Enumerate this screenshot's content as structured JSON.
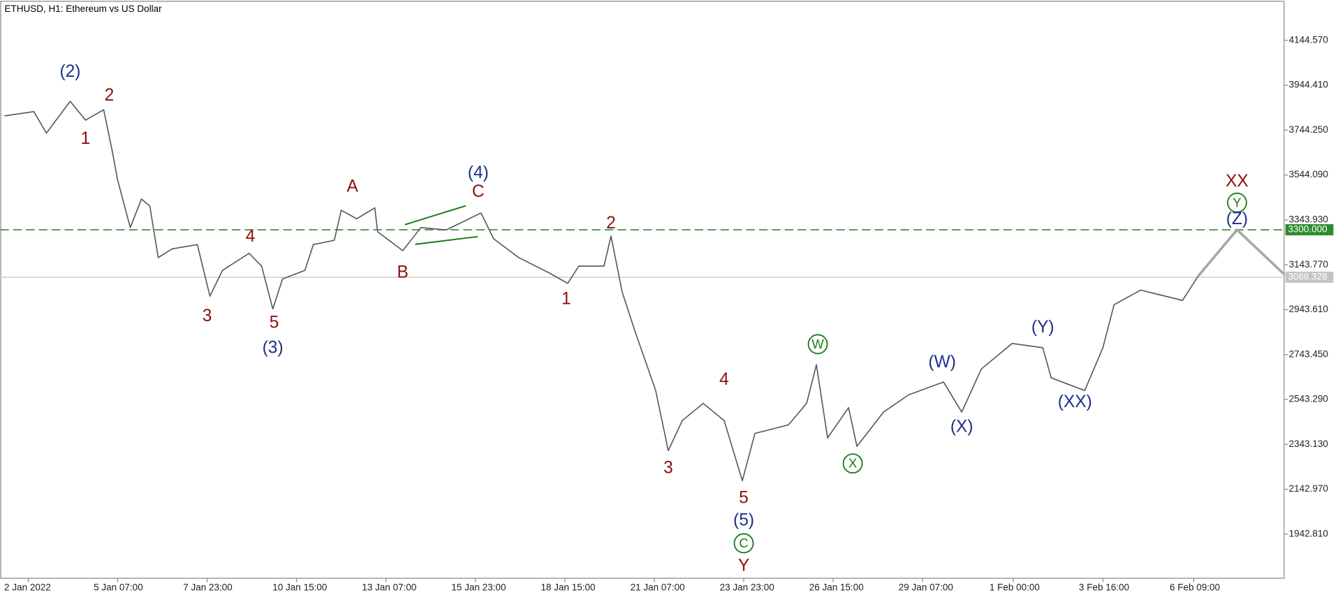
{
  "chart_data": {
    "type": "line",
    "title": "ETHUSD, H1:  Ethereum vs US Dollar",
    "color": "#555555",
    "x": [
      -2,
      19,
      28,
      45,
      56,
      69,
      75,
      79,
      88,
      96,
      102,
      108,
      118,
      136,
      145,
      154,
      173,
      182,
      190,
      197,
      213,
      219,
      234,
      239,
      250,
      263,
      265,
      283,
      296,
      314,
      339,
      348,
      366,
      388,
      401,
      409,
      427,
      432,
      440,
      449,
      464,
      473,
      483,
      498,
      513,
      526,
      535,
      559,
      572,
      579,
      587,
      602,
      608,
      627,
      645,
      670,
      683,
      697,
      719,
      741,
      747,
      771,
      784,
      792,
      811,
      841,
      852
    ],
    "values": [
      3808,
      3827,
      3731,
      3873,
      3789,
      3835,
      3655,
      3521,
      3310,
      3437,
      3406,
      3176,
      3215,
      3234,
      3004,
      3119,
      3195,
      3138,
      2947,
      3081,
      3119,
      3234,
      3253,
      3387,
      3349,
      3398,
      3291,
      3207,
      3310,
      3299,
      3375,
      3260,
      3176,
      3107,
      3061,
      3138,
      3138,
      3272,
      3023,
      2851,
      2583,
      2315,
      2449,
      2526,
      2449,
      2181,
      2392,
      2430,
      2526,
      2698,
      2372,
      2507,
      2334,
      2487,
      2564,
      2621,
      2487,
      2679,
      2793,
      2774,
      2640,
      2583,
      2774,
      2966,
      3031,
      2985,
      3092
    ],
    "projection": {
      "color": "#a8a8a8",
      "x": [
        852,
        880,
        914
      ],
      "values": [
        3092,
        3300,
        3100
      ]
    },
    "xlim": [
      -5,
      914
    ],
    "ylim": [
      1744,
      4317
    ],
    "xticks": [
      {
        "value": 15,
        "label": "2 Jan 2022"
      },
      {
        "value": 79,
        "label": "5 Jan 07:00"
      },
      {
        "value": 143,
        "label": "7 Jan 23:00"
      },
      {
        "value": 207,
        "label": "10 Jan 15:00"
      },
      {
        "value": 271,
        "label": "13 Jan 07:00"
      },
      {
        "value": 335,
        "label": "15 Jan 23:00"
      },
      {
        "value": 399,
        "label": "18 Jan 15:00"
      },
      {
        "value": 463,
        "label": "21 Jan 07:00"
      },
      {
        "value": 527,
        "label": "23 Jan 23:00"
      },
      {
        "value": 591,
        "label": "26 Jan 15:00"
      },
      {
        "value": 655,
        "label": "29 Jan 07:00"
      },
      {
        "value": 720,
        "label": "1 Feb 00:00"
      },
      {
        "value": 784,
        "label": "3 Feb 16:00"
      },
      {
        "value": 849,
        "label": "6 Feb 09:00"
      }
    ],
    "yticks": [
      {
        "value": 4144.57,
        "label": "4144.570"
      },
      {
        "value": 3944.41,
        "label": "3944.410"
      },
      {
        "value": 3744.25,
        "label": "3744.250"
      },
      {
        "value": 3544.09,
        "label": "3544.090"
      },
      {
        "value": 3343.93,
        "label": "3343.930"
      },
      {
        "value": 3143.77,
        "label": "3143.770"
      },
      {
        "value": 2943.61,
        "label": "2943.610"
      },
      {
        "value": 2743.45,
        "label": "2743.450"
      },
      {
        "value": 2543.29,
        "label": "2543.290"
      },
      {
        "value": 2343.13,
        "label": "2343.130"
      },
      {
        "value": 2142.97,
        "label": "2142.970"
      },
      {
        "value": 1942.81,
        "label": "1942.810"
      }
    ],
    "levels": [
      {
        "value": 3300,
        "label": "3300.000",
        "color": "#2e8b2e",
        "dashed": true
      },
      {
        "value": 3088.328,
        "label": "3088.328",
        "color": "#c4c4c4",
        "dashed": false
      }
    ],
    "annotations": [
      {
        "text": "(2)",
        "x": 45,
        "y": 4003,
        "color": "#1f2f8a"
      },
      {
        "text": "2",
        "x": 73,
        "y": 3896,
        "color": "#8b1010"
      },
      {
        "text": "1",
        "x": 56,
        "y": 3704,
        "color": "#8b1010"
      },
      {
        "text": "A",
        "x": 247,
        "y": 3490,
        "color": "#8b1010"
      },
      {
        "text": "(4)",
        "x": 337,
        "y": 3551,
        "color": "#1f2f8a"
      },
      {
        "text": "C",
        "x": 337,
        "y": 3467,
        "color": "#8b1010"
      },
      {
        "text": "B",
        "x": 283,
        "y": 3107,
        "color": "#8b1010"
      },
      {
        "text": "4",
        "x": 174,
        "y": 3268,
        "color": "#8b1010"
      },
      {
        "text": "3",
        "x": 143,
        "y": 2912,
        "color": "#8b1010"
      },
      {
        "text": "5",
        "x": 191,
        "y": 2882,
        "color": "#8b1010"
      },
      {
        "text": "(3)",
        "x": 190,
        "y": 2771,
        "color": "#1f2f8a"
      },
      {
        "text": "2",
        "x": 432,
        "y": 3326,
        "color": "#8b1010"
      },
      {
        "text": "1",
        "x": 400,
        "y": 2989,
        "color": "#8b1010"
      },
      {
        "text": "3",
        "x": 473,
        "y": 2235,
        "color": "#8b1010"
      },
      {
        "text": "4",
        "x": 513,
        "y": 2629,
        "color": "#8b1010"
      },
      {
        "text": "5",
        "x": 527,
        "y": 2101,
        "color": "#8b1010"
      },
      {
        "text": "(5)",
        "x": 527,
        "y": 2001,
        "color": "#1f2f8a"
      },
      {
        "text": "C",
        "x": 527,
        "y": 1902,
        "color": "#1a7a1a",
        "circled": true
      },
      {
        "text": "Y",
        "x": 527,
        "y": 1799,
        "color": "#8b1010"
      },
      {
        "text": "W",
        "x": 580,
        "y": 2790,
        "color": "#1a7a1a",
        "circled": true
      },
      {
        "text": "X",
        "x": 605,
        "y": 2258,
        "color": "#1a7a1a",
        "circled": true
      },
      {
        "text": "(W)",
        "x": 669,
        "y": 2706,
        "color": "#1f2f8a"
      },
      {
        "text": "(X)",
        "x": 683,
        "y": 2419,
        "color": "#1f2f8a"
      },
      {
        "text": "(Y)",
        "x": 741,
        "y": 2862,
        "color": "#1f2f8a"
      },
      {
        "text": "(XX)",
        "x": 764,
        "y": 2529,
        "color": "#1f2f8a"
      },
      {
        "text": "XX",
        "x": 880,
        "y": 3513,
        "color": "#8b1010"
      },
      {
        "text": "Y",
        "x": 880,
        "y": 3421,
        "color": "#1a7a1a",
        "circled": true
      },
      {
        "text": "(Z)",
        "x": 880,
        "y": 3345,
        "color": "#1f2f8a"
      }
    ]
  }
}
